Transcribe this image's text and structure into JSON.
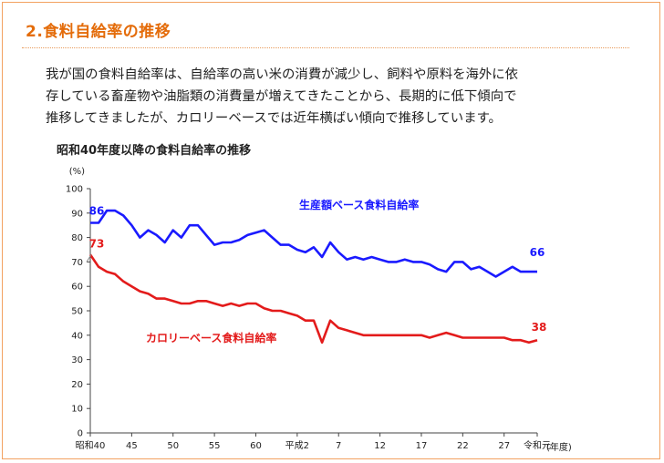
{
  "section_title": "2.食料自給率の推移",
  "intro_lines": [
    "我が国の食料自給率は、自給率の高い米の消費が減少し、飼料や原料を海外に依",
    "存している畜産物や油脂類の消費量が増えてきたことから、長期的に低下傾向で",
    "推移してきましたが、カロリーベースでは近年横ばい傾向で推移しています。"
  ],
  "colors": {
    "accent": "#e46c0a",
    "border": "#f2a160",
    "production": "#1a1aff",
    "calorie": "#e31b1b"
  },
  "chart_data": {
    "type": "line",
    "title": "昭和40年度以降の食料自給率の推移",
    "ylabel": "(%)",
    "xlabel": "(年度)",
    "ylim": [
      0,
      100
    ],
    "yticks": [
      0,
      10,
      20,
      30,
      40,
      50,
      60,
      70,
      80,
      90,
      100
    ],
    "x_tick_labels": [
      "昭和40",
      "45",
      "50",
      "55",
      "60",
      "平成2",
      "7",
      "12",
      "17",
      "22",
      "27",
      "令和元"
    ],
    "x": [
      1965,
      1966,
      1967,
      1968,
      1969,
      1970,
      1971,
      1972,
      1973,
      1974,
      1975,
      1976,
      1977,
      1978,
      1979,
      1980,
      1981,
      1982,
      1983,
      1984,
      1985,
      1986,
      1987,
      1988,
      1989,
      1990,
      1991,
      1992,
      1993,
      1994,
      1995,
      1996,
      1997,
      1998,
      1999,
      2000,
      2001,
      2002,
      2003,
      2004,
      2005,
      2006,
      2007,
      2008,
      2009,
      2010,
      2011,
      2012,
      2013,
      2014,
      2015,
      2016,
      2017,
      2018,
      2019
    ],
    "grid": false,
    "series": [
      {
        "name": "生産額ベース食料自給率",
        "color": "#1a1aff",
        "values": [
          86,
          86,
          91,
          91,
          89,
          85,
          80,
          83,
          81,
          78,
          83,
          80,
          85,
          85,
          81,
          77,
          78,
          78,
          79,
          81,
          82,
          83,
          80,
          77,
          77,
          75,
          74,
          76,
          72,
          78,
          74,
          71,
          72,
          71,
          72,
          71,
          70,
          70,
          71,
          70,
          70,
          69,
          67,
          66,
          70,
          70,
          67,
          68,
          66,
          64,
          66,
          68,
          66,
          66,
          66
        ],
        "start_label": "86",
        "end_label": "66"
      },
      {
        "name": "カロリーベース食料自給率",
        "color": "#e31b1b",
        "values": [
          73,
          68,
          66,
          65,
          62,
          60,
          58,
          57,
          55,
          55,
          54,
          53,
          53,
          54,
          54,
          53,
          52,
          53,
          52,
          53,
          53,
          51,
          50,
          50,
          49,
          48,
          46,
          46,
          37,
          46,
          43,
          42,
          41,
          40,
          40,
          40,
          40,
          40,
          40,
          40,
          40,
          39,
          40,
          41,
          40,
          39,
          39,
          39,
          39,
          39,
          39,
          38,
          38,
          37,
          38
        ],
        "start_label": "73",
        "end_label": "38"
      }
    ]
  }
}
